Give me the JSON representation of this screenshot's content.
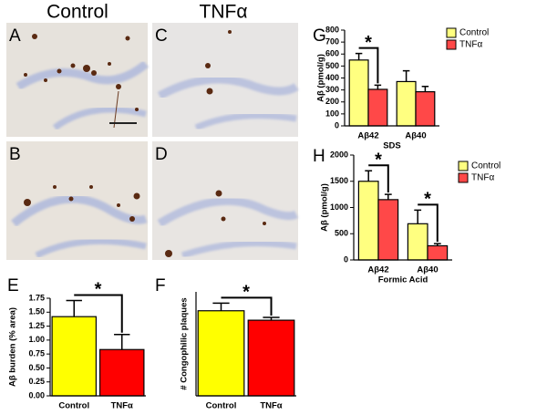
{
  "column_headers": [
    "Control",
    "TNFα"
  ],
  "image_panels": [
    "A",
    "B",
    "C",
    "D"
  ],
  "chart_data": [
    {
      "type": "bar",
      "panel": "E",
      "ylabel": "Aβ burden (% area)",
      "categories": [
        "Control",
        "TNFα"
      ],
      "values": [
        1.42,
        0.83
      ],
      "errors": [
        0.29,
        0.27
      ],
      "colors": [
        "#ffff00",
        "#ff0000"
      ],
      "ylim": [
        0,
        1.75
      ],
      "yticks": [
        {
          "value": 0,
          "label": "0.00"
        },
        {
          "value": 0.25,
          "label": "0.25"
        },
        {
          "value": 0.5,
          "label": "0.50"
        },
        {
          "value": 0.75,
          "label": "0.75"
        },
        {
          "value": 1,
          "label": "1.00"
        },
        {
          "value": 1.25,
          "label": "1.25"
        },
        {
          "value": 1.5,
          "label": "1.50"
        },
        {
          "value": 1.75,
          "label": "1.75"
        }
      ],
      "annotations": [
        "*"
      ]
    },
    {
      "type": "bar",
      "panel": "F",
      "ylabel": "# Congophilic plaques",
      "categories": [
        "Control",
        "TNFα"
      ],
      "values": [
        18,
        16
      ],
      "errors": [
        1.6,
        0.6
      ],
      "colors": [
        "#ffff00",
        "#ff0000"
      ],
      "ylim": [
        0,
        22
      ],
      "annotations": [
        "*"
      ]
    },
    {
      "type": "grouped_bar",
      "panel": "G",
      "ylabel": "Aβ (pmol/g)",
      "xlabel": "SDS",
      "categories": [
        "Aβ42",
        "Aβ40"
      ],
      "series": [
        {
          "name": "Control",
          "color": "#ffff80",
          "values": [
            550,
            370
          ],
          "errors": [
            55,
            90
          ]
        },
        {
          "name": "TNFα",
          "color": "#ff4848",
          "values": [
            305,
            285
          ],
          "errors": [
            35,
            45
          ]
        }
      ],
      "ylim": [
        0,
        800
      ],
      "yticks": [
        0,
        100,
        200,
        300,
        400,
        500,
        600,
        700,
        800
      ],
      "annotations": [
        "*"
      ]
    },
    {
      "type": "grouped_bar",
      "panel": "H",
      "ylabel": "Aβ (pmol/g)",
      "xlabel": "Formic Acid",
      "categories": [
        "Aβ42",
        "Aβ40"
      ],
      "series": [
        {
          "name": "Control",
          "color": "#ffff80",
          "values": [
            1500,
            690
          ],
          "errors": [
            200,
            260
          ]
        },
        {
          "name": "TNFα",
          "color": "#ff4848",
          "values": [
            1150,
            270
          ],
          "errors": [
            100,
            40
          ]
        }
      ],
      "ylim": [
        0,
        2000
      ],
      "yticks": [
        0,
        500,
        1000,
        1500,
        2000
      ],
      "annotations": [
        "*",
        "*"
      ]
    }
  ]
}
